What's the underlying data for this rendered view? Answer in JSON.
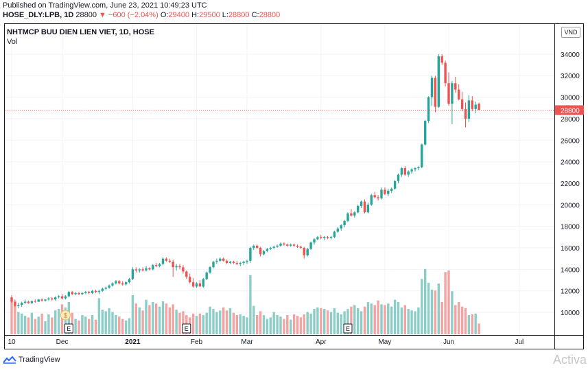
{
  "header": {
    "published": "Published on TradingView.com, June 23, 2021 10:49:23 UTC",
    "symbol": "HOSE_DLY:LPB, 1D",
    "last": "28800",
    "change": "▼ −600 (−2.04%)",
    "o_label": "O:",
    "o_value": "29400",
    "h_label": "H:",
    "h_value": "29500",
    "l_label": "L:",
    "l_value": "28800",
    "c_label": "C:",
    "c_value": "28800"
  },
  "legend": {
    "title": "NHTMCP BUU DIEN LIEN VIET, 1D, HOSE",
    "volume": "Vol"
  },
  "currency_button": "VND",
  "footer": {
    "brand": "TradingView",
    "watermark": "Activa"
  },
  "colors": {
    "up": "#26a69a",
    "down": "#ef5350",
    "up_vol": "#8ccdc7",
    "down_vol": "#f3a4a2",
    "grid": "#f0f3fa"
  },
  "chart_data": {
    "type": "candlestick",
    "title": "NHTMCP BUU DIEN LIEN VIET, 1D, HOSE",
    "y_ticks": [
      10000,
      12000,
      14000,
      16000,
      18000,
      20000,
      22000,
      24000,
      26000,
      28000,
      30000,
      32000,
      34000
    ],
    "ylim": [
      7900,
      36800
    ],
    "last_price": 28800,
    "last_price_label": "28800",
    "x_ticks": [
      {
        "label": "10",
        "bold": false,
        "index": 0
      },
      {
        "label": "Dec",
        "bold": false,
        "index": 15
      },
      {
        "label": "2021",
        "bold": true,
        "index": 36
      },
      {
        "label": "Feb",
        "bold": false,
        "index": 55
      },
      {
        "label": "Mar",
        "bold": false,
        "index": 70
      },
      {
        "label": "Apr",
        "bold": false,
        "index": 92
      },
      {
        "label": "May",
        "bold": false,
        "index": 111
      },
      {
        "label": "Jun",
        "bold": false,
        "index": 130
      },
      {
        "label": "Jul",
        "bold": false,
        "index": 151
      }
    ],
    "events": [
      {
        "type": "dividend",
        "label": "$",
        "index": 16
      },
      {
        "type": "earnings",
        "label": "E",
        "index": 17
      },
      {
        "type": "earnings",
        "label": "E",
        "index": 52
      },
      {
        "type": "earnings",
        "label": "E",
        "index": 100
      }
    ],
    "volume_axis_max": 1,
    "candles": [
      [
        11400,
        11600,
        10900,
        11000,
        0.44
      ],
      [
        11000,
        11200,
        10500,
        10600,
        0.38
      ],
      [
        10600,
        10900,
        10400,
        10700,
        0.29
      ],
      [
        10700,
        11000,
        10500,
        10900,
        0.27
      ],
      [
        10900,
        11200,
        10800,
        11000,
        0.24
      ],
      [
        11000,
        11100,
        10800,
        10850,
        0.22
      ],
      [
        10850,
        11100,
        10800,
        11050,
        0.28
      ],
      [
        11050,
        11200,
        10900,
        11000,
        0.2
      ],
      [
        11000,
        11250,
        10950,
        11200,
        0.23
      ],
      [
        11200,
        11300,
        11000,
        11100,
        0.27
      ],
      [
        11100,
        11250,
        11000,
        11200,
        0.17
      ],
      [
        11200,
        11400,
        11100,
        11300,
        0.26
      ],
      [
        11300,
        11400,
        11100,
        11200,
        0.22
      ],
      [
        11200,
        11500,
        11100,
        11400,
        0.31
      ],
      [
        11400,
        11600,
        11300,
        11500,
        0.33
      ],
      [
        11500,
        11700,
        11200,
        11300,
        0.39
      ],
      [
        11300,
        11600,
        11200,
        11500,
        0.35
      ],
      [
        11500,
        12000,
        11400,
        11900,
        0.42
      ],
      [
        11900,
        12000,
        11600,
        11700,
        0.28
      ],
      [
        11700,
        11900,
        11600,
        11800,
        0.2
      ],
      [
        11800,
        11900,
        11600,
        11700,
        0.18
      ],
      [
        11700,
        11900,
        11600,
        11800,
        0.25
      ],
      [
        11800,
        12000,
        11700,
        11900,
        0.23
      ],
      [
        11900,
        12000,
        11700,
        11800,
        0.2
      ],
      [
        11800,
        12100,
        11700,
        12000,
        0.25
      ],
      [
        12000,
        12100,
        11800,
        11900,
        0.19
      ],
      [
        11900,
        12100,
        11700,
        12000,
        0.47
      ],
      [
        12000,
        12300,
        11900,
        12200,
        0.32
      ],
      [
        12200,
        12400,
        12100,
        12300,
        0.3
      ],
      [
        12300,
        12600,
        12200,
        12500,
        0.34
      ],
      [
        12500,
        12800,
        12400,
        12700,
        0.29
      ],
      [
        12700,
        13000,
        12600,
        12900,
        0.25
      ],
      [
        12900,
        13000,
        12600,
        12700,
        0.23
      ],
      [
        12700,
        12900,
        12500,
        12600,
        0.2
      ],
      [
        12600,
        12900,
        12500,
        12800,
        0.18
      ],
      [
        12800,
        13200,
        12700,
        13100,
        0.21
      ],
      [
        13100,
        14200,
        13000,
        14000,
        0.51
      ],
      [
        14000,
        14200,
        13700,
        13900,
        0.4
      ],
      [
        13900,
        14100,
        13700,
        14000,
        0.35
      ],
      [
        14000,
        14200,
        13800,
        13900,
        0.31
      ],
      [
        13900,
        14300,
        13800,
        14100,
        0.45
      ],
      [
        14100,
        14200,
        13900,
        14000,
        0.38
      ],
      [
        14000,
        14500,
        13900,
        14400,
        0.42
      ],
      [
        14400,
        14600,
        14200,
        14300,
        0.4
      ],
      [
        14300,
        14600,
        14200,
        14500,
        0.36
      ],
      [
        14500,
        15100,
        14400,
        15000,
        0.43
      ],
      [
        15000,
        15100,
        14700,
        14800,
        0.4
      ],
      [
        14800,
        15000,
        14600,
        14700,
        0.35
      ],
      [
        14700,
        14900,
        13300,
        14200,
        0.39
      ],
      [
        14200,
        14500,
        13900,
        14300,
        0.32
      ],
      [
        14300,
        14500,
        14000,
        14200,
        0.28
      ],
      [
        14200,
        14400,
        13600,
        13800,
        0.3
      ],
      [
        13800,
        13900,
        13100,
        13300,
        0.25
      ],
      [
        13300,
        13600,
        12700,
        12800,
        0.22
      ],
      [
        12800,
        13200,
        12300,
        12400,
        0.27
      ],
      [
        12400,
        12800,
        12300,
        12700,
        0.24
      ],
      [
        12700,
        13000,
        12500,
        12400,
        0.27
      ],
      [
        12400,
        13200,
        12300,
        13100,
        0.25
      ],
      [
        13100,
        13800,
        13000,
        13700,
        0.28
      ],
      [
        13700,
        14300,
        13600,
        14200,
        0.36
      ],
      [
        14200,
        14800,
        14100,
        14700,
        0.33
      ],
      [
        14700,
        15000,
        14500,
        14800,
        0.29
      ],
      [
        14800,
        15100,
        14700,
        15000,
        0.31
      ],
      [
        15000,
        15100,
        14700,
        14800,
        0.35
      ],
      [
        14800,
        14900,
        14500,
        14600,
        0.31
      ],
      [
        14600,
        14800,
        14500,
        14700,
        0.34
      ],
      [
        14700,
        14800,
        14500,
        14600,
        0.28
      ],
      [
        14600,
        14800,
        14400,
        14500,
        0.25
      ],
      [
        14500,
        14700,
        14300,
        14600,
        0.26
      ],
      [
        14600,
        14800,
        14400,
        14700,
        0.24
      ],
      [
        14700,
        14900,
        14500,
        14800,
        0.22
      ],
      [
        14800,
        16100,
        14600,
        16000,
        0.77
      ],
      [
        16000,
        16300,
        15800,
        16200,
        0.37
      ],
      [
        16200,
        16300,
        15900,
        16000,
        0.25
      ],
      [
        16000,
        16100,
        15200,
        15400,
        0.3
      ],
      [
        15400,
        15800,
        15300,
        15700,
        0.25
      ],
      [
        15700,
        16000,
        15600,
        15900,
        0.2
      ],
      [
        15900,
        16100,
        15800,
        16000,
        0.22
      ],
      [
        16000,
        16200,
        15900,
        16100,
        0.29
      ],
      [
        16100,
        16300,
        16000,
        16200,
        0.25
      ],
      [
        16200,
        16500,
        16100,
        16400,
        0.23
      ],
      [
        16400,
        16500,
        16200,
        16300,
        0.2
      ],
      [
        16300,
        16400,
        16100,
        16200,
        0.25
      ],
      [
        16200,
        16400,
        16100,
        16300,
        0.19
      ],
      [
        16300,
        16400,
        16100,
        16200,
        0.26
      ],
      [
        16200,
        16300,
        16000,
        16100,
        0.24
      ],
      [
        16100,
        16200,
        15900,
        16000,
        0.22
      ],
      [
        16000,
        16100,
        15000,
        15300,
        0.26
      ],
      [
        15300,
        16000,
        15200,
        15900,
        0.29
      ],
      [
        15900,
        16600,
        15800,
        16500,
        0.27
      ],
      [
        16500,
        16900,
        16300,
        16800,
        0.33
      ],
      [
        16800,
        17100,
        16700,
        17000,
        0.35
      ],
      [
        17000,
        17200,
        16800,
        16900,
        0.34
      ],
      [
        16900,
        17100,
        16700,
        17000,
        0.33
      ],
      [
        17000,
        17100,
        16800,
        16900,
        0.31
      ],
      [
        16900,
        17100,
        16800,
        17000,
        0.29
      ],
      [
        17000,
        17600,
        16900,
        17500,
        0.34
      ],
      [
        17500,
        17900,
        17400,
        17800,
        0.28
      ],
      [
        17800,
        18200,
        17600,
        18100,
        0.26
      ],
      [
        18100,
        18600,
        17900,
        18500,
        0.3
      ],
      [
        18500,
        19300,
        18400,
        19200,
        0.33
      ],
      [
        19200,
        19600,
        18900,
        19000,
        0.36
      ],
      [
        19000,
        19400,
        18800,
        19300,
        0.38
      ],
      [
        19300,
        20000,
        19200,
        19900,
        0.34
      ],
      [
        19900,
        20400,
        19700,
        20300,
        0.3
      ],
      [
        20300,
        20500,
        19200,
        19300,
        0.36
      ],
      [
        19300,
        20200,
        19200,
        20000,
        0.42
      ],
      [
        20000,
        21000,
        19900,
        20900,
        0.4
      ],
      [
        20900,
        21200,
        20600,
        20700,
        0.38
      ],
      [
        20700,
        20900,
        20400,
        20600,
        0.44
      ],
      [
        20600,
        21600,
        20500,
        21400,
        0.39
      ],
      [
        21400,
        21600,
        20900,
        21000,
        0.38
      ],
      [
        21000,
        21500,
        20800,
        21300,
        0.4
      ],
      [
        21300,
        21600,
        21100,
        21500,
        0.36
      ],
      [
        21500,
        22300,
        21400,
        22200,
        0.45
      ],
      [
        22200,
        22900,
        22000,
        22800,
        0.42
      ],
      [
        22800,
        23500,
        22600,
        23400,
        0.35
      ],
      [
        23400,
        23600,
        22700,
        22800,
        0.38
      ],
      [
        22800,
        23200,
        22600,
        23100,
        0.33
      ],
      [
        23100,
        23400,
        22900,
        23300,
        0.31
      ],
      [
        23300,
        23500,
        23100,
        23400,
        0.3
      ],
      [
        23400,
        23600,
        23200,
        23500,
        0.35
      ],
      [
        23500,
        25700,
        23400,
        25600,
        0.72
      ],
      [
        25600,
        27900,
        25500,
        27800,
        0.85
      ],
      [
        27800,
        30100,
        27600,
        30000,
        0.67
      ],
      [
        30000,
        32000,
        29200,
        31800,
        0.58
      ],
      [
        31800,
        32000,
        28600,
        29100,
        0.57
      ],
      [
        29100,
        34000,
        29000,
        33800,
        0.66
      ],
      [
        33800,
        34000,
        33000,
        33200,
        0.42
      ],
      [
        33200,
        33400,
        31000,
        31300,
        0.81
      ],
      [
        31300,
        32300,
        29200,
        29400,
        0.83
      ],
      [
        29400,
        31500,
        27500,
        31300,
        0.56
      ],
      [
        31300,
        31900,
        30400,
        30700,
        0.38
      ],
      [
        30700,
        31200,
        29700,
        29800,
        0.42
      ],
      [
        29800,
        30500,
        28700,
        28900,
        0.36
      ],
      [
        28900,
        29500,
        27200,
        28000,
        0.34
      ],
      [
        28000,
        30200,
        27700,
        29700,
        0.25
      ],
      [
        29700,
        30100,
        28700,
        28900,
        0.26
      ],
      [
        28900,
        29600,
        28500,
        29300,
        0.27
      ],
      [
        29400,
        29500,
        28800,
        28800,
        0.14
      ]
    ]
  }
}
